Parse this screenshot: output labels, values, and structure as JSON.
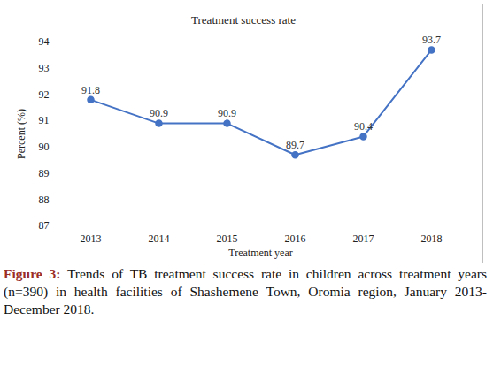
{
  "chart_data": {
    "type": "line",
    "title": "Treatment success rate",
    "x_label": "Treatment year",
    "y_label": "Percent (%)",
    "categories": [
      "2013",
      "2014",
      "2015",
      "2016",
      "2017",
      "2018"
    ],
    "values": [
      91.8,
      90.9,
      90.9,
      89.7,
      90.4,
      93.7
    ],
    "color": "#4472c4",
    "marker": "circle",
    "line_style": "solid",
    "ylim": [
      87,
      94
    ],
    "yticks": [
      87,
      88,
      89,
      90,
      91,
      92,
      93,
      94
    ],
    "grid": false,
    "data_labels": true,
    "caption_label": "Figure 3:",
    "caption": "Trends of TB treatment success rate in children across treatment years (n=390) in health facilities of Shashemene Town, Oromia region, January 2013- December 2018."
  }
}
